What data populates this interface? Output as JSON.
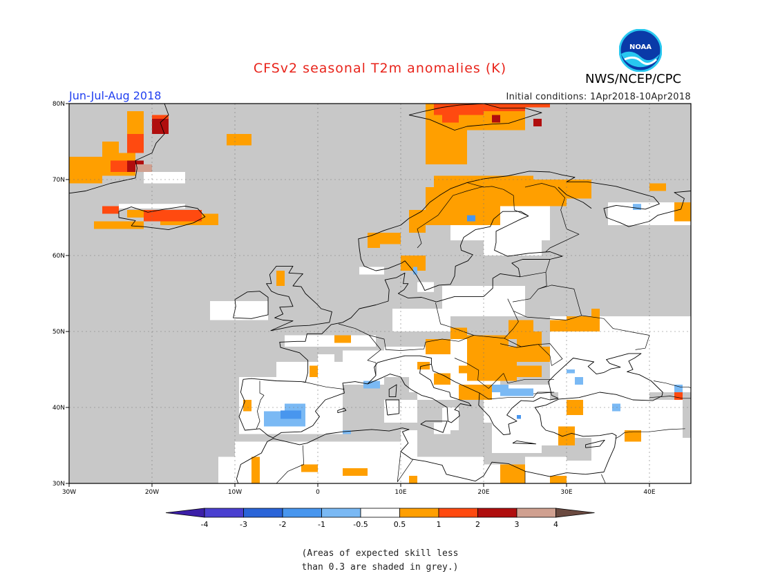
{
  "header": {
    "title": "CFSv2 seasonal T2m anomalies (K)",
    "agency": "NWS/NCEP/CPC",
    "logo_text": "NOAA",
    "season": "Jun-Jul-Aug 2018",
    "initial_conditions": "Initial conditions: 1Apr2018-10Apr2018"
  },
  "map": {
    "lon_range": [
      -30,
      45
    ],
    "lat_range": [
      30,
      80
    ],
    "lon_ticks": [
      "30W",
      "20W",
      "10W",
      "0",
      "10E",
      "20E",
      "30E",
      "40E"
    ],
    "lat_ticks": [
      "30N",
      "40N",
      "50N",
      "60N",
      "70N",
      "80N"
    ],
    "low_skill_color": "#c8c8c8",
    "neutral_color": "#ffffff"
  },
  "colorbar": {
    "labels": [
      "-4",
      "-3",
      "-2",
      "-1",
      "-0.5",
      "0.5",
      "1",
      "2",
      "3",
      "4"
    ],
    "colors": [
      "#3c1fa8",
      "#4a3fd0",
      "#2a64d8",
      "#4896ee",
      "#7ab9f4",
      "#ffffff",
      "#ff9f00",
      "#ff4a10",
      "#b00e0e",
      "#d0a090",
      "#6b4a40"
    ]
  },
  "footnote": {
    "line1": "(Areas of expected skill less",
    "line2": "than 0.3 are shaded in grey.)"
  }
}
